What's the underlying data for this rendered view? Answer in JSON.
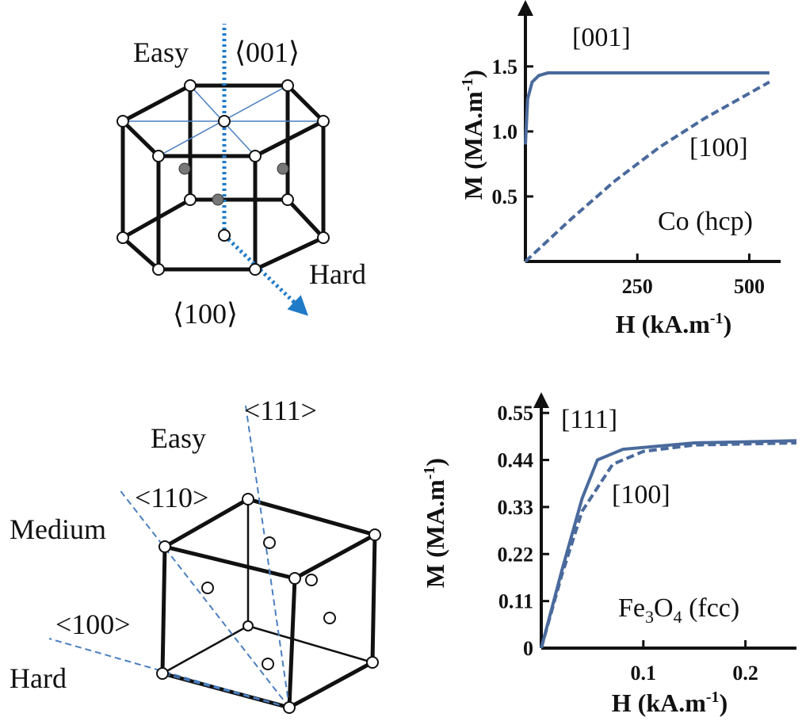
{
  "diagrams": [
    {
      "labels": [
        "Easy",
        "⟨001⟩",
        "Hard",
        "⟨100⟩"
      ]
    },
    {
      "labels": [
        "<111>",
        "Easy",
        "<110>",
        "Medium",
        "<100>",
        "Hard"
      ]
    }
  ],
  "chart_data": [
    {
      "type": "line",
      "ylabel": {
        "text": "M (MA.m",
        "sup": "-1",
        "end": ")"
      },
      "xlabel": {
        "text": "H (kA.m",
        "sup": "-1",
        "end": ")"
      },
      "annotation": [
        {
          "text": "Co (hcp)"
        }
      ],
      "xlim": [
        0,
        570
      ],
      "ylim": [
        0,
        1.95
      ],
      "xticks": [
        250,
        500
      ],
      "yticks": [
        0.5,
        {
          "value": 1,
          "label": "1.0"
        },
        1.5
      ],
      "series": [
        {
          "name": "[001]",
          "color": "#4a6a9c",
          "dash": false,
          "x": [
            0,
            5,
            15,
            30,
            50,
            80,
            150,
            300,
            545
          ],
          "values": [
            0.9,
            1.25,
            1.38,
            1.43,
            1.45,
            1.45,
            1.45,
            1.45,
            1.45
          ]
        },
        {
          "name": "[100]",
          "color": "#4a6a9c",
          "dash": true,
          "x": [
            0,
            100,
            200,
            300,
            400,
            545
          ],
          "values": [
            0,
            0.32,
            0.62,
            0.88,
            1.1,
            1.38
          ]
        }
      ]
    },
    {
      "type": "line",
      "ylabel": {
        "text": "M (MA.m",
        "sup": "-1",
        "end": ")"
      },
      "xlabel": {
        "text": "H (kA.m",
        "sup": "-1",
        "end": ")"
      },
      "annotation": [
        {
          "text": "Fe"
        },
        {
          "text": "3",
          "sub": true
        },
        {
          "text": "O"
        },
        {
          "text": "4",
          "sub": true
        },
        {
          "text": " (fcc)"
        }
      ],
      "xlim": [
        0,
        0.25
      ],
      "ylim": [
        0,
        0.58
      ],
      "xticks": [
        0.1,
        0.2
      ],
      "yticks": [
        0,
        0.11,
        0.22,
        0.33,
        0.44,
        0.55
      ],
      "series": [
        {
          "name": "[111]",
          "color": "#4a6a9c",
          "dash": false,
          "x": [
            0,
            0.02,
            0.04,
            0.055,
            0.08,
            0.15,
            0.25
          ],
          "values": [
            0,
            0.18,
            0.35,
            0.44,
            0.465,
            0.48,
            0.485
          ]
        },
        {
          "name": "[100]",
          "color": "#4a6a9c",
          "dash": true,
          "x": [
            0,
            0.02,
            0.04,
            0.07,
            0.1,
            0.15,
            0.25
          ],
          "values": [
            0,
            0.17,
            0.32,
            0.43,
            0.46,
            0.475,
            0.48
          ]
        }
      ]
    }
  ]
}
